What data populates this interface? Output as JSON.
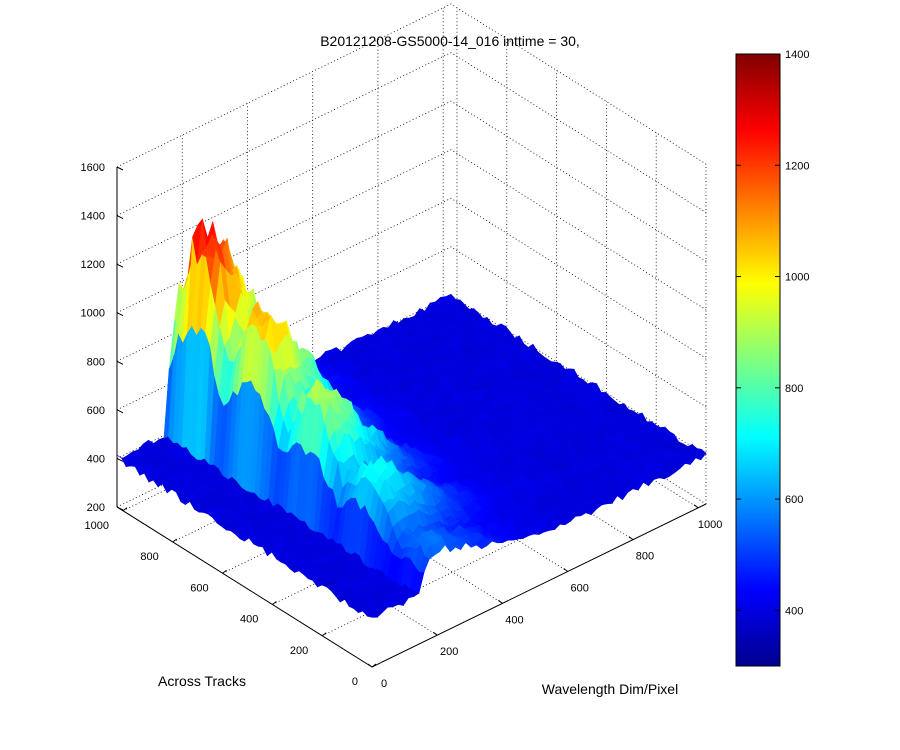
{
  "chart_data": {
    "type": "surface",
    "title": "B20121208-GS5000-14_016 inttime = 30,",
    "xlabel": "Wavelength Dim/Pixel",
    "ylabel": "Across Tracks",
    "zlabel": "",
    "xlim": [
      0,
      1024
    ],
    "ylim": [
      0,
      1024
    ],
    "zlim": [
      200,
      1600
    ],
    "x_ticks": [
      "0",
      "200",
      "400",
      "600",
      "800",
      "1000"
    ],
    "y_ticks": [
      "0",
      "200",
      "400",
      "600",
      "800",
      "1000"
    ],
    "z_ticks": [
      "200",
      "400",
      "600",
      "800",
      "1000",
      "1200",
      "1400",
      "1600"
    ],
    "grid": true,
    "colormap": "jet",
    "background_level": 400,
    "peak": {
      "x_range": [
        150,
        900
      ],
      "y_range": [
        0,
        1000
      ],
      "max_value": 1400
    },
    "colorbar": {
      "range": [
        300,
        1400
      ],
      "ticks": [
        "400",
        "600",
        "800",
        "1000",
        "1200",
        "1400"
      ]
    }
  }
}
